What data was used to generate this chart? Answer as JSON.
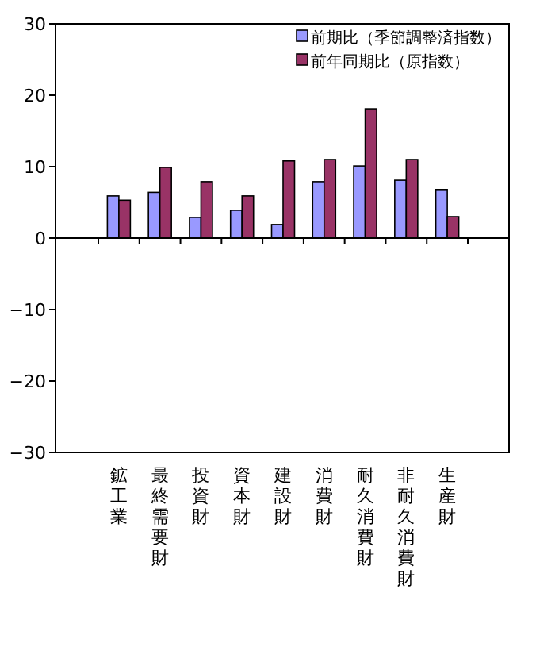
{
  "chart_data": {
    "type": "bar",
    "categories": [
      "鉱工業",
      "最終需要財",
      "投資財",
      "資本財",
      "建設財",
      "消費財",
      "耐久消費財",
      "非耐久消費財",
      "生産財"
    ],
    "series": [
      {
        "name": "前期比（季節調整済指数）",
        "color": "#9999ff",
        "values": [
          5.9,
          6.4,
          2.9,
          3.9,
          1.9,
          7.9,
          10.1,
          8.1,
          6.8
        ]
      },
      {
        "name": "前年同期比（原指数）",
        "color": "#993366",
        "values": [
          5.3,
          9.9,
          7.9,
          5.9,
          10.8,
          11.0,
          18.1,
          11.0,
          3.0
        ]
      }
    ],
    "ylim": [
      -30,
      30
    ],
    "yticks": [
      -30,
      -20,
      -10,
      0,
      10,
      20,
      30
    ],
    "legend": "top right"
  }
}
